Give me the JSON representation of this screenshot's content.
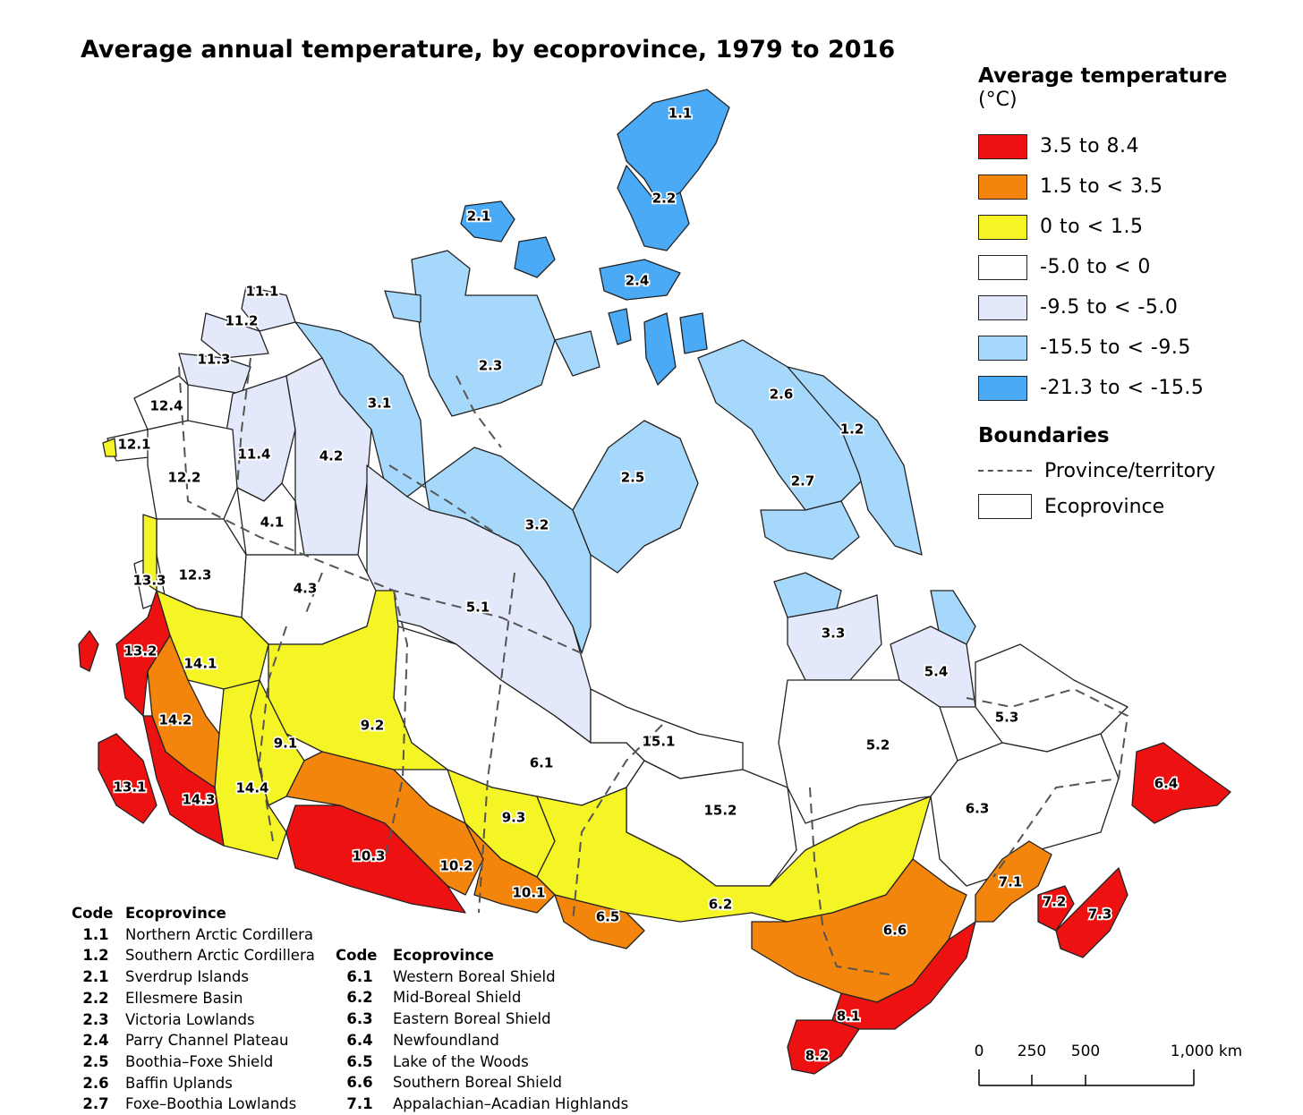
{
  "title": "Average annual temperature, by ecoprovince, 1979 to 2016",
  "legend": {
    "title": "Average temperature",
    "unit": "(°C)",
    "classes": [
      {
        "label": "3.5 to 8.4",
        "color": "#ee1111"
      },
      {
        "label": "1.5 to < 3.5",
        "color": "#f3850c"
      },
      {
        "label": "0 to < 1.5",
        "color": "#f5f526"
      },
      {
        "label": "-5.0 to < 0",
        "color": "#ffffff"
      },
      {
        "label": "-9.5 to < -5.0",
        "color": "#e3e9fa"
      },
      {
        "label": "-15.5 to < -9.5",
        "color": "#a6d8fb"
      },
      {
        "label": "-21.3 to < -15.5",
        "color": "#4aaaf6"
      }
    ],
    "boundaries_title": "Boundaries",
    "boundaries": [
      {
        "label": "Province/territory",
        "style": "dashed-line"
      },
      {
        "label": "Ecoprovince",
        "style": "outlined-box"
      }
    ]
  },
  "map": {
    "region_labels": [
      "1.1",
      "1.2",
      "2.1",
      "2.2",
      "2.3",
      "2.4",
      "2.5",
      "2.6",
      "2.7",
      "3.1",
      "3.2",
      "3.3",
      "4.1",
      "4.2",
      "4.3",
      "5.1",
      "5.2",
      "5.3",
      "5.4",
      "6.1",
      "6.2",
      "6.3",
      "6.4",
      "6.5",
      "6.6",
      "7.1",
      "7.2",
      "7.3",
      "8.1",
      "8.2",
      "9.1",
      "9.2",
      "9.3",
      "10.1",
      "10.2",
      "10.3",
      "11.1",
      "11.2",
      "11.3",
      "11.4",
      "12.1",
      "12.2",
      "12.3",
      "12.4",
      "13.1",
      "13.2",
      "13.3",
      "14.1",
      "14.2",
      "14.3",
      "14.4",
      "15.1",
      "15.2"
    ]
  },
  "code_table_1": {
    "header_code": "Code",
    "header_name": "Ecoprovince",
    "rows": [
      {
        "code": "1.1",
        "name": "Northern Arctic Cordillera"
      },
      {
        "code": "1.2",
        "name": "Southern Arctic Cordillera"
      },
      {
        "code": "2.1",
        "name": "Sverdrup Islands"
      },
      {
        "code": "2.2",
        "name": "Ellesmere Basin"
      },
      {
        "code": "2.3",
        "name": "Victoria Lowlands"
      },
      {
        "code": "2.4",
        "name": "Parry Channel Plateau"
      },
      {
        "code": "2.5",
        "name": "Boothia–Foxe Shield"
      },
      {
        "code": "2.6",
        "name": "Baffin Uplands"
      },
      {
        "code": "2.7",
        "name": "Foxe–Boothia Lowlands"
      }
    ]
  },
  "code_table_2": {
    "header_code": "Code",
    "header_name": "Ecoprovince",
    "rows": [
      {
        "code": "6.1",
        "name": "Western Boreal Shield"
      },
      {
        "code": "6.2",
        "name": "Mid-Boreal Shield"
      },
      {
        "code": "6.3",
        "name": "Eastern Boreal Shield"
      },
      {
        "code": "6.4",
        "name": "Newfoundland"
      },
      {
        "code": "6.5",
        "name": "Lake of the Woods"
      },
      {
        "code": "6.6",
        "name": "Southern Boreal Shield"
      },
      {
        "code": "7.1",
        "name": "Appalachian–Acadian Highlands"
      }
    ]
  },
  "scale_bar": {
    "ticks": [
      "0",
      "250",
      "500",
      "1,000 km"
    ]
  }
}
